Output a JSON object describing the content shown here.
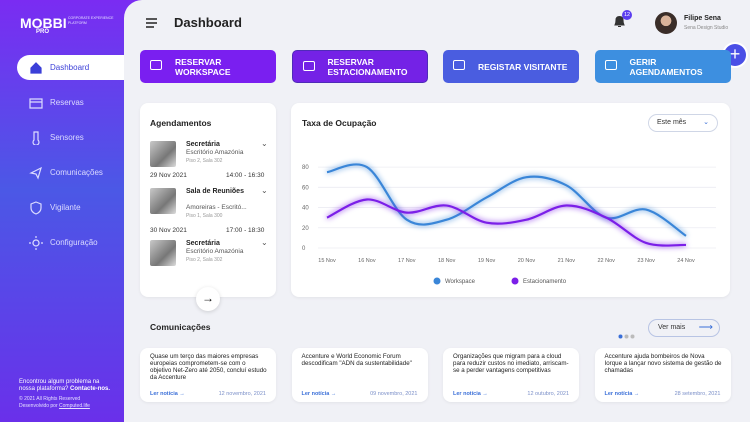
{
  "sidebar": {
    "logo": "MOBBI",
    "logo_sub": "PRO",
    "tagline": "CORPORATE EXPERIENCE PLATFORM",
    "menu": [
      "Dashboard",
      "Reservas",
      "Sensores",
      "Comunicações",
      "Vigilante",
      "Configuração"
    ],
    "help": "Encontrou algum problema na nossa plataforma?",
    "help_link": "Contacte-nos.",
    "copyright": "© 2021 All Rights Reserved",
    "developed": "Desenvolvido por",
    "developer": "Computed.life"
  },
  "header": {
    "title": "Dashboard",
    "notifications": 12,
    "user_name": "Filipe Sena",
    "user_company": "Sena Design Studio"
  },
  "actions": [
    "RESERVAR WORKSPACE",
    "RESERVAR ESTACIONAMENTO",
    "REGISTAR VISITANTE",
    "GERIR AGENDAMENTOS"
  ],
  "schedule": {
    "title": "Agendamentos",
    "items": [
      {
        "type": "Secretária",
        "place": "Escritório Amazónia",
        "room": "Piso 2, Sala 302",
        "date": "29 Nov 2021",
        "time": "14:00 - 16:30"
      },
      {
        "type": "Sala de Reuniões",
        "place": "Amoreiras - Escritó...",
        "room": "Piso 1, Sala 300",
        "date": "30 Nov 2021",
        "time": "17:00 - 18:30"
      },
      {
        "type": "Secretária",
        "place": "Escritório Amazónia",
        "room": "Piso 2, Sala 302"
      }
    ]
  },
  "chart_data": {
    "type": "line",
    "title": "Taxa de Ocupação",
    "filter": "Este mês",
    "categories": [
      "15 Nov",
      "16 Nov",
      "17 Nov",
      "18 Nov",
      "19 Nov",
      "20 Nov",
      "21 Nov",
      "22 Nov",
      "23 Nov",
      "24 Nov"
    ],
    "series": [
      {
        "name": "Workspace",
        "color": "#3a86d8",
        "values": [
          75,
          80,
          28,
          28,
          50,
          70,
          62,
          30,
          38,
          12
        ]
      },
      {
        "name": "Estacionamento",
        "color": "#7b1fe8",
        "values": [
          30,
          48,
          35,
          42,
          25,
          28,
          42,
          30,
          5,
          3
        ]
      }
    ],
    "ylim": [
      0,
      90
    ],
    "yticks": [
      0,
      20,
      40,
      60,
      80
    ],
    "grid": true
  },
  "news": {
    "title": "Comunicações",
    "more": "Ver mais",
    "link": "Ler notícia →",
    "items": [
      {
        "text": "Quase um terço das maiores empresas europeias comprometem-se com o objetivo Net-Zero até 2050, concluí estudo da Accenture",
        "date": "12 novembro, 2021"
      },
      {
        "text": "Accenture e World Economic Forum descodificam \"ADN da sustentabilidade\"",
        "date": "09 novembro, 2021"
      },
      {
        "text": "Organizações que migram para a cloud para reduzir custos no imediato, arriscam-se a perder vantagens competitivas",
        "date": "12 outubro, 2021"
      },
      {
        "text": "Accenture ajuda bombeiros de Nova Iorque a lançar novo sistema de gestão de chamadas",
        "date": "28 setembro, 2021"
      }
    ]
  }
}
